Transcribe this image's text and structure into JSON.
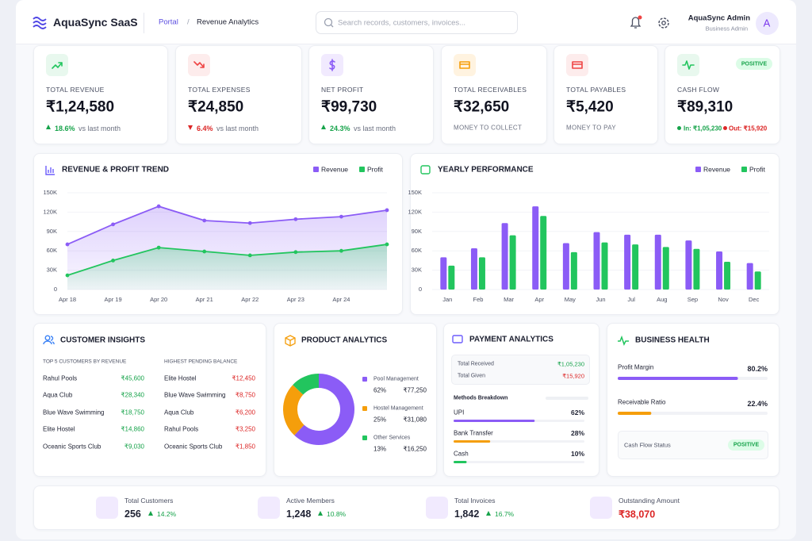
{
  "header": {
    "brand": "AquaSync SaaS",
    "breadcrumb": [
      "Portal",
      "Revenue Analytics"
    ],
    "breadcrumb_separator": "/",
    "search_placeholder": "Search records, customers, invoices...",
    "user_name": "AquaSync Admin",
    "user_role": "Business Admin",
    "avatar": "A"
  },
  "kpis": [
    {
      "label": "TOTAL REVENUE",
      "value": "₹1,24,580",
      "change": "18.6%",
      "note": "vs last month",
      "trend": "up"
    },
    {
      "label": "TOTAL EXPENSES",
      "value": "₹24,850",
      "change": "6.4%",
      "note": "vs last month",
      "trend": "down"
    },
    {
      "label": "NET PROFIT",
      "value": "₹99,730",
      "change": "24.3%",
      "note": "vs last month",
      "trend": "up"
    },
    {
      "label": "TOTAL RECEIVABLES",
      "value": "₹32,650",
      "note": "MONEY TO COLLECT"
    },
    {
      "label": "TOTAL PAYABLES",
      "value": "₹5,420",
      "note": "MONEY TO PAY"
    },
    {
      "label": "CASH FLOW",
      "value": "₹89,310",
      "badge": "POSITIVE",
      "inflow": "In: ₹1,05,230",
      "outflow": "Out: ₹15,920"
    }
  ],
  "revenue_trend": {
    "type": "line",
    "title": "REVENUE & PROFIT TREND",
    "categories": [
      "Apr 18",
      "Apr 19",
      "Apr 20",
      "Apr 21",
      "Apr 22",
      "Apr 23",
      "Apr 24",
      null
    ],
    "series": [
      {
        "name": "Revenue",
        "color": "#8b5cf6",
        "values": [
          70000,
          101000,
          129000,
          107000,
          103000,
          109000,
          113000,
          123000
        ]
      },
      {
        "name": "Profit",
        "color": "#22c55e",
        "values": [
          22000,
          45000,
          65000,
          59000,
          53000,
          58000,
          60000,
          70000
        ]
      }
    ],
    "ylim": [
      0,
      150000
    ],
    "yticks": [
      0,
      {
        "value": 30000,
        "label": "30K"
      },
      {
        "value": 60000,
        "label": "60K"
      },
      {
        "value": 90000,
        "label": "90K"
      },
      {
        "value": 120000,
        "label": "120K"
      },
      {
        "value": 150000,
        "label": "150K"
      }
    ]
  },
  "yearly_performance": {
    "type": "bar",
    "title": "YEARLY PERFORMANCE",
    "categories": [
      "Jan",
      "Feb",
      "Mar",
      "Apr",
      "May",
      "Jun",
      "Jul",
      "Aug",
      "Sep",
      "Nov",
      "Dec"
    ],
    "series": [
      {
        "name": "Revenue",
        "color": "#8b5cf6",
        "values": [
          50000,
          64000,
          103000,
          129000,
          72000,
          89000,
          85000,
          85000,
          76000,
          59000,
          41000
        ]
      },
      {
        "name": "Profit",
        "color": "#22c55e",
        "values": [
          37000,
          50000,
          84000,
          114000,
          58000,
          73000,
          70000,
          66000,
          63000,
          43000,
          28000
        ]
      }
    ],
    "ylim": [
      0,
      150000
    ],
    "yticks": [
      0,
      {
        "value": 30000,
        "label": "30K"
      },
      {
        "value": 60000,
        "label": "60K"
      },
      {
        "value": 90000,
        "label": "90K"
      },
      {
        "value": 120000,
        "label": "120K"
      },
      {
        "value": 150000,
        "label": "150K"
      }
    ]
  },
  "customer_insights": {
    "title": "CUSTOMER INSIGHTS",
    "top_heading": "TOP 5 CUSTOMERS BY REVENUE",
    "top": [
      [
        "Rahul Pools",
        "₹45,600"
      ],
      [
        "Aqua Club",
        "₹28,340"
      ],
      [
        "Blue Wave Swimming",
        "₹18,750"
      ],
      [
        "Elite Hostel",
        "₹14,860"
      ],
      [
        "Oceanic Sports Club",
        "₹9,030"
      ]
    ],
    "pending_heading": "HIGHEST PENDING BALANCE",
    "pending": [
      [
        "Elite Hostel",
        "₹12,450"
      ],
      [
        "Blue Wave Swimming",
        "₹8,750"
      ],
      [
        "Aqua Club",
        "₹6,200"
      ],
      [
        "Rahul Pools",
        "₹3,250"
      ],
      [
        "Oceanic Sports Club",
        "₹1,850"
      ]
    ]
  },
  "product_analytics": {
    "type": "pie",
    "title": "PRODUCT ANALYTICS",
    "categories": [
      "Pool Management",
      "Hostel Management",
      "Other Services"
    ],
    "values": [
      62,
      25,
      13
    ],
    "value_labels": [
      "62%",
      "25%",
      "13%"
    ],
    "amounts": [
      "₹77,250",
      "₹31,080",
      "₹16,250"
    ],
    "colors": [
      "#8b5cf6",
      "#f59e0b",
      "#22c55e"
    ]
  },
  "payment_analytics": {
    "title": "PAYMENT ANALYTICS",
    "received_label": "Total Received",
    "received": "₹1,05,230",
    "given_label": "Total Given",
    "given": "₹15,920",
    "breakdown_title": "Methods Breakdown",
    "methods": {
      "categories": [
        "UPI",
        "Bank Transfer",
        "Cash"
      ],
      "values": [
        62,
        28,
        10
      ],
      "value_labels": [
        "62%",
        "28%",
        "10%"
      ],
      "colors": [
        "#8b5cf6",
        "#f59e0b",
        "#22c55e"
      ]
    }
  },
  "business_health": {
    "title": "BUSINESS HEALTH",
    "metrics": {
      "categories": [
        "Profit Margin",
        "Receivable Ratio"
      ],
      "values": [
        80.2,
        22.4
      ],
      "value_labels": [
        "80.2%",
        "22.4%"
      ],
      "colors": [
        "#8b5cf6",
        "#f59e0b"
      ]
    },
    "status_label": "Cash Flow Status",
    "status": "POSITIVE"
  },
  "summary": [
    {
      "label": "Total Customers",
      "value": "256",
      "change": "14.2%"
    },
    {
      "label": "Active Members",
      "value": "1,248",
      "change": "10.8%"
    },
    {
      "label": "Total Invoices",
      "value": "1,842",
      "change": "16.7%"
    },
    {
      "label": "Outstanding Amount",
      "value": "₹38,070"
    }
  ]
}
